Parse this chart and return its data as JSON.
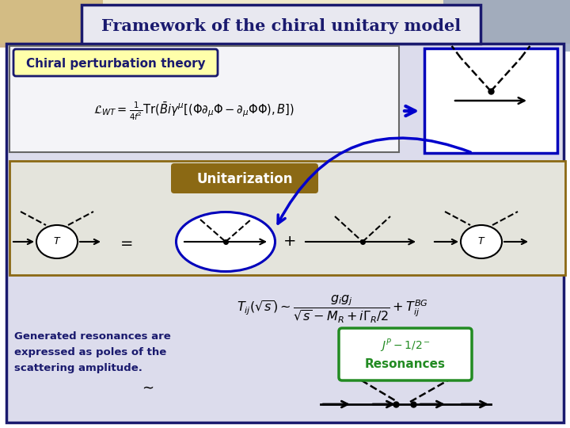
{
  "title": "Framework of the chiral unitary model",
  "title_color": "#1a1a6e",
  "title_bg": "#e8e8f0",
  "title_border": "#1a1a6e",
  "bg_outer": "#c8c8d8",
  "bg_main": "#dcdcec",
  "chiral_label": "Chiral perturbation theory",
  "chiral_label_color": "#1a1a6e",
  "chiral_label_bg": "#ffffaa",
  "chiral_label_border": "#1a1a6e",
  "unitarization_label": "Unitarization",
  "unitarization_color": "#ffffff",
  "unitarization_bg": "#8B6914",
  "unitarization_box_color": "#8B6914",
  "resonances_label": "Resonances",
  "resonances_top": "J^P - 1/2^-",
  "resonances_bg": "#ffffff",
  "resonances_border": "#228B22",
  "resonances_color": "#228B22",
  "generated_color": "#1a1a6e",
  "generated_text": "Generated resonances are\nexpressed as poles of the\nscattering amplitude.",
  "diagram_box_color": "#0000bb",
  "blue_arrow_color": "#0000cc"
}
